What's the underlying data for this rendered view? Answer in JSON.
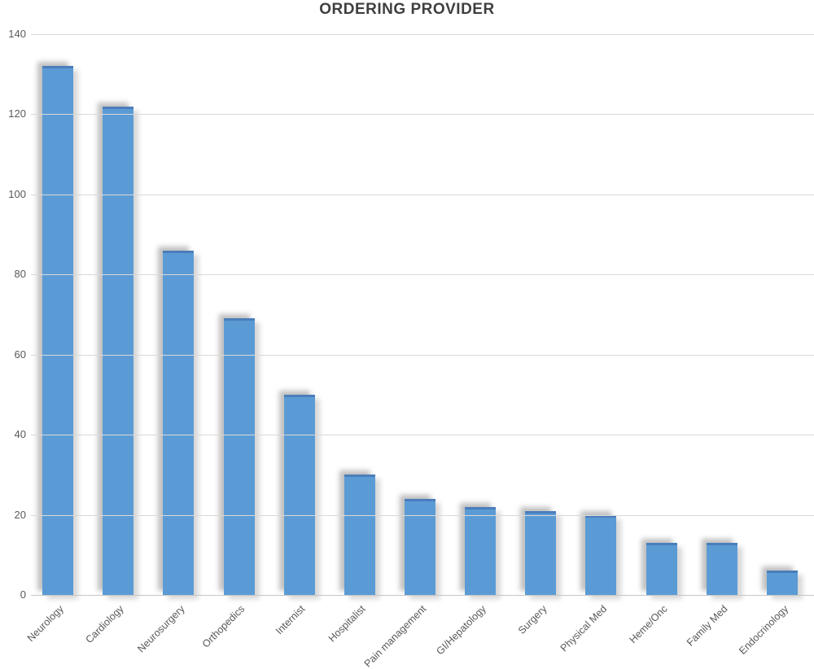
{
  "chart_data": {
    "type": "bar",
    "title": "ORDERING PROVIDER",
    "categories": [
      "Neurology",
      "Cardiology",
      "Neurosurgery",
      "Orthopedics",
      "Internist",
      "Hospitalist",
      "Pain management",
      "GI/Hepatology",
      "Surgery",
      "Physical Med",
      "Heme/Onc",
      "Family Med",
      "Endocrinology"
    ],
    "values": [
      132,
      122,
      86,
      69,
      50,
      30,
      24,
      22,
      21,
      20,
      13,
      13,
      6
    ],
    "xlabel": "",
    "ylabel": "",
    "ylim": [
      0,
      140
    ],
    "ytick_interval": 20,
    "ytick_labels": [
      "140",
      "120",
      "100",
      "80",
      "60",
      "40",
      "20",
      "0"
    ],
    "grid": "horizontal",
    "legend": "none",
    "x_label_rotation_deg": 45
  },
  "colors": {
    "bar_fill": "#5b9bd5",
    "bar_top_edge": "#4a7ebb",
    "gridline": "#d9d9d9",
    "axis_line": "#c6c6c6",
    "title_text": "#3f3f3f",
    "tick_text": "#595959",
    "background": "#ffffff"
  }
}
